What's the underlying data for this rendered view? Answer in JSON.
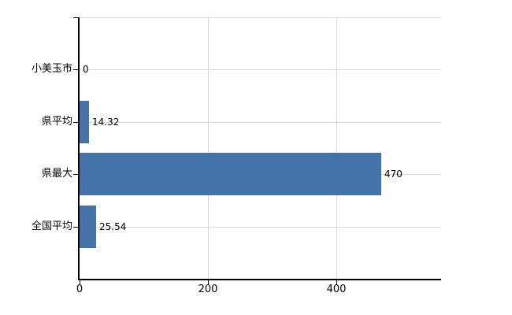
{
  "chart_data": {
    "type": "bar",
    "orientation": "horizontal",
    "title": "",
    "xlabel": "",
    "ylabel": "",
    "categories": [
      "小美玉市",
      "県平均",
      "県最大",
      "全国平均"
    ],
    "values": [
      0,
      14.32,
      470,
      25.54
    ],
    "value_labels": [
      "0",
      "14.32",
      "470",
      "25.54"
    ],
    "x_tick_values": [
      0,
      200,
      400
    ],
    "x_tick_labels": [
      "0",
      "200",
      "400"
    ],
    "xlim": [
      0,
      563
    ],
    "grid": true,
    "legend": false,
    "colors": {
      "bar": "#4572a7",
      "gridline": "#d8d8d8",
      "axis": "#000000",
      "text": "#000000"
    }
  }
}
